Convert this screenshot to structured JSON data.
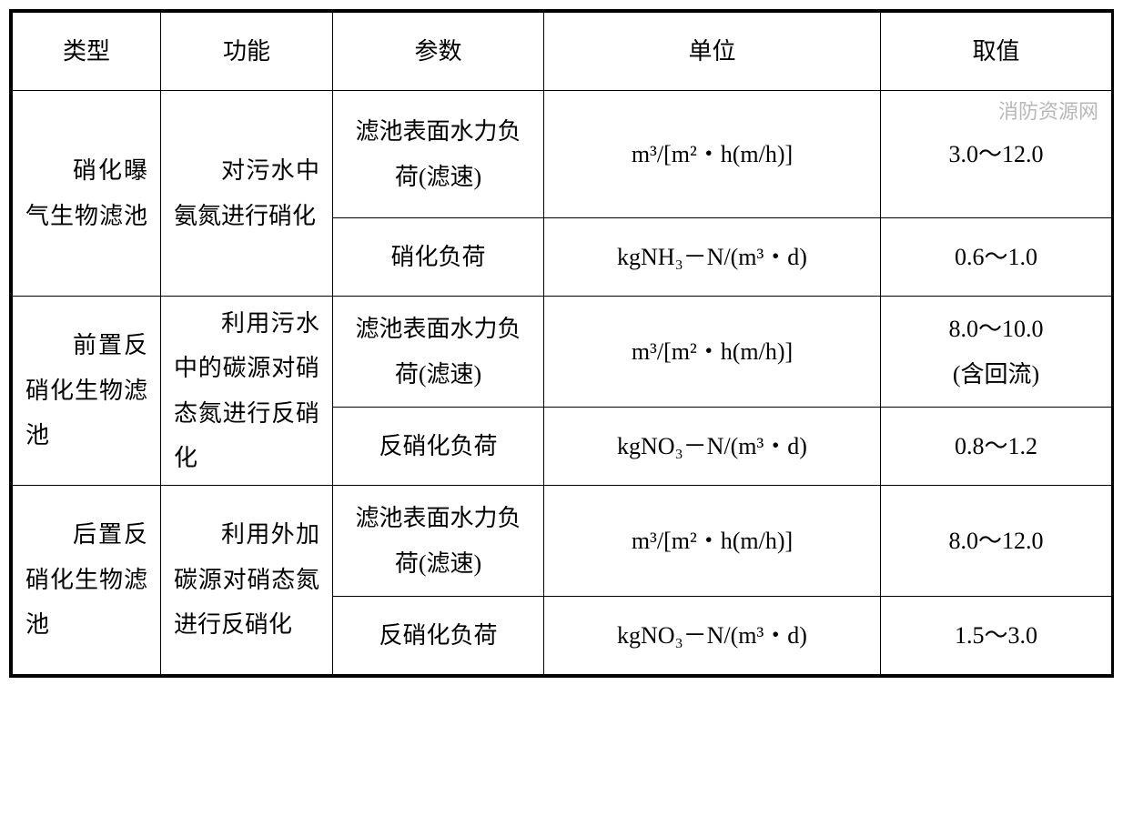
{
  "watermark": "消防资源网",
  "headers": {
    "type": "类型",
    "func": "功能",
    "param": "参数",
    "unit": "单位",
    "value": "取值"
  },
  "units": {
    "hydraulic": "m³/[m²・h(m/h)]",
    "nitr": "kgNH₃－N/(m³・d)",
    "denitr": "kgNO₃－N/(m³・d)"
  },
  "rows": {
    "r1": {
      "type": "硝化曝气生物滤池",
      "func": "对污水中氨氮进行硝化",
      "param1": "滤池表面水力负荷(滤速)",
      "value1": "3.0～12.0",
      "param2": "硝化负荷",
      "value2": "0.6～1.0"
    },
    "r2": {
      "type": "前置反硝化生物滤池",
      "func": "利用污水中的碳源对硝态氮进行反硝化",
      "param1": "滤池表面水力负荷(滤速)",
      "value1_line1": "8.0～10.0",
      "value1_line2": "(含回流)",
      "param2": "反硝化负荷",
      "value2": "0.8～1.2"
    },
    "r3": {
      "type": "后置反硝化生物滤池",
      "func": "利用外加碳源对硝态氮进行反硝化",
      "param1": "滤池表面水力负荷(滤速)",
      "value1": "8.0～12.0",
      "param2": "反硝化负荷",
      "value2": "1.5～3.0"
    }
  }
}
